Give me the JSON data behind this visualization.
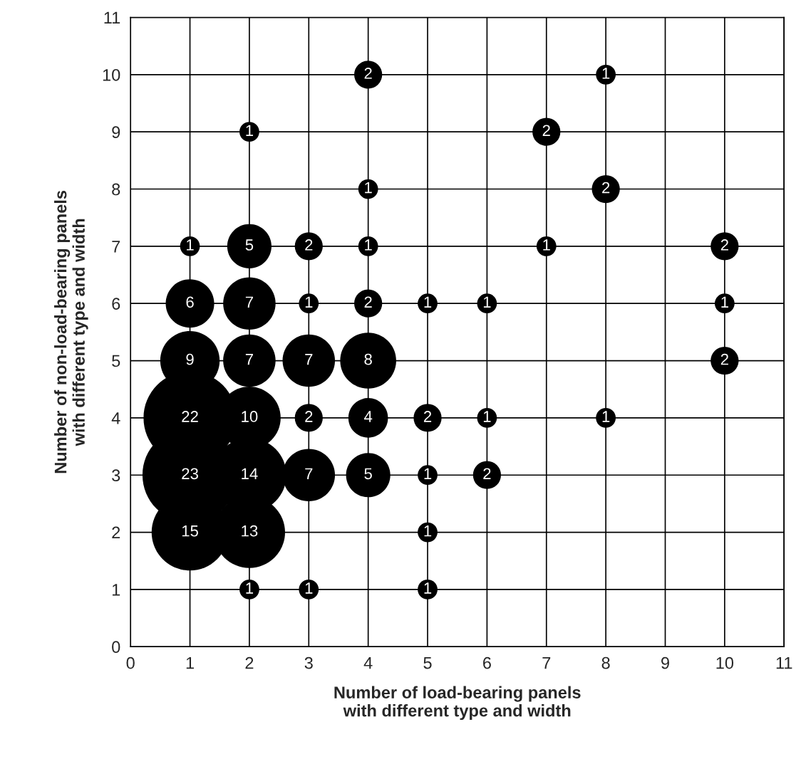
{
  "chart_data": {
    "type": "bubble",
    "xlabel": "Number of load-bearing panels\nwith different type and width",
    "ylabel": "Number of non-load-bearing panels\nwith different type and width",
    "x": [
      2,
      3,
      5,
      1,
      2,
      5,
      1,
      2,
      3,
      4,
      5,
      6,
      1,
      2,
      3,
      4,
      5,
      6,
      8,
      1,
      2,
      3,
      4,
      10,
      1,
      2,
      3,
      4,
      5,
      6,
      10,
      1,
      2,
      3,
      4,
      7,
      10,
      4,
      8,
      2,
      7,
      4,
      8
    ],
    "values": [
      1,
      1,
      1,
      2,
      2,
      2,
      3,
      3,
      3,
      3,
      3,
      3,
      4,
      4,
      4,
      4,
      4,
      4,
      4,
      5,
      5,
      5,
      5,
      5,
      6,
      6,
      6,
      6,
      6,
      6,
      6,
      7,
      7,
      7,
      7,
      7,
      7,
      8,
      8,
      9,
      9,
      10,
      10
    ],
    "sizes": [
      1,
      1,
      1,
      15,
      13,
      1,
      23,
      14,
      7,
      5,
      1,
      2,
      22,
      10,
      2,
      4,
      2,
      1,
      1,
      9,
      7,
      7,
      8,
      2,
      6,
      7,
      1,
      2,
      1,
      1,
      1,
      1,
      5,
      2,
      1,
      1,
      2,
      1,
      2,
      1,
      2,
      2,
      1
    ],
    "value_labels": [
      "1",
      "1",
      "1",
      "15",
      "13",
      "1",
      "23",
      "14",
      "7",
      "5",
      "1",
      "2",
      "22",
      "10",
      "2",
      "4",
      "2",
      "1",
      "1",
      "9",
      "7",
      "7",
      "8",
      "2",
      "6",
      "7",
      "1",
      "2",
      "1",
      "1",
      "1",
      "1",
      "5",
      "2",
      "1",
      "1",
      "2",
      "1",
      "2",
      "1",
      "2",
      "2",
      "1"
    ],
    "color": "#000000",
    "marker": "circle",
    "grid": true,
    "legend": false,
    "xlim": [
      0,
      11
    ],
    "ylim": [
      0,
      11
    ],
    "xticks": [
      0,
      1,
      2,
      3,
      4,
      5,
      6,
      7,
      8,
      9,
      10,
      11
    ],
    "yticks": [
      0,
      1,
      2,
      3,
      4,
      5,
      6,
      7,
      8,
      9,
      10,
      11
    ]
  }
}
